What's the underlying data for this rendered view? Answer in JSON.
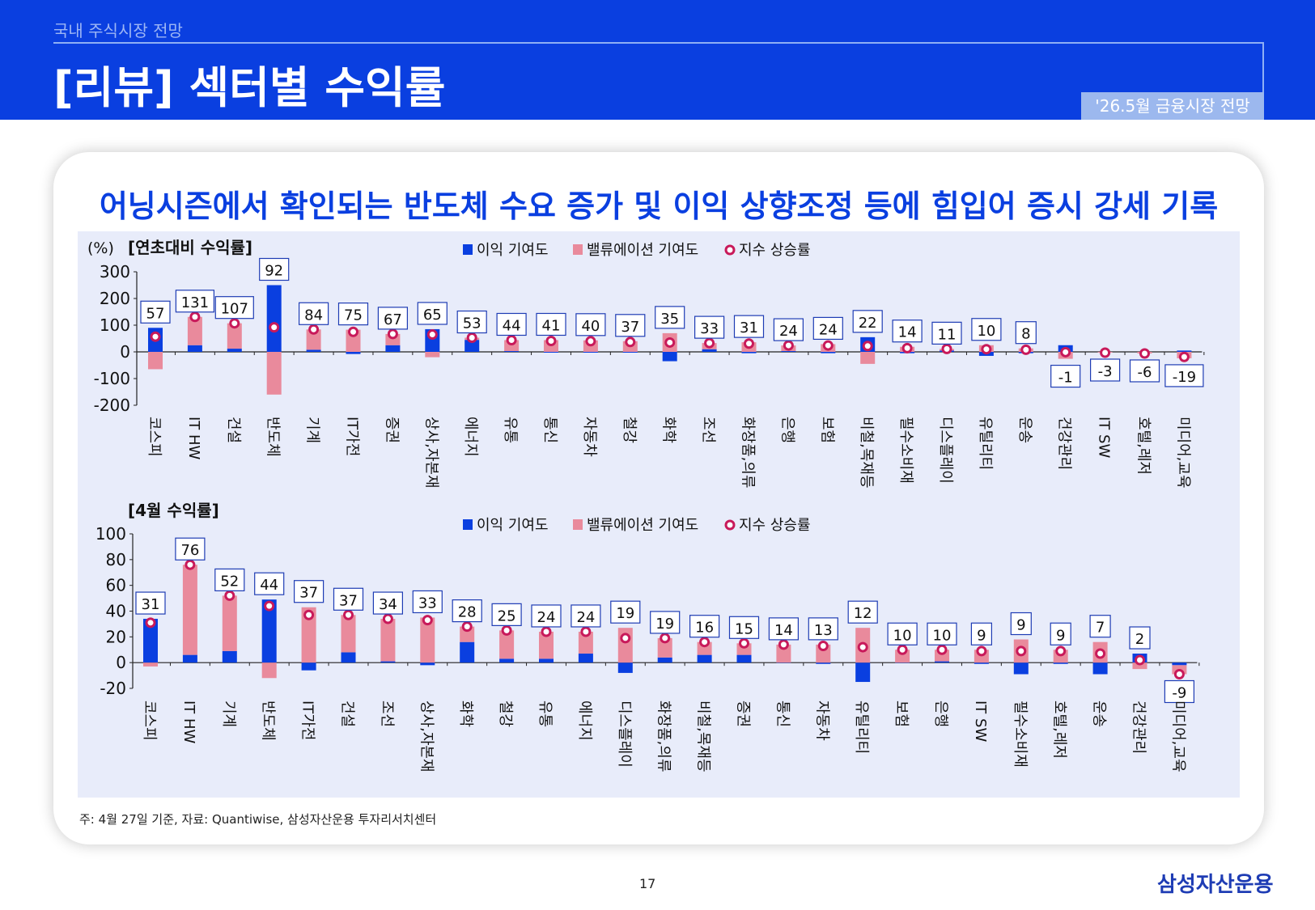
{
  "header": {
    "breadcrumb": "국내 주식시장 전망",
    "title": "[리뷰] 섹터별 수익률",
    "badge": "'26.5월 금융시장 전망"
  },
  "headline": "어닝시즌에서 확인되는 반도체 수요 증가 및 이익 상향조정 등에 힘입어 증시 강세 기록",
  "footnote": "주: 4월 27일 기준, 자료: Quantiwise, 삼성자산운용 투자리서치센터",
  "page_number": "17",
  "brand": "삼성자산운용",
  "colors": {
    "earnings": "#0a3fe0",
    "valuation": "#e98a9c",
    "index_marker": "#c8195a",
    "plot_bg": "#e8ecfa"
  },
  "chart_data": [
    {
      "type": "bar",
      "title": "[연초대비 수익률]",
      "unit": "(%)",
      "ylim": [
        -200,
        300
      ],
      "yticks": [
        300,
        200,
        100,
        0,
        -100,
        -200
      ],
      "legend": [
        "이익 기여도",
        "밸류에이션 기여도",
        "지수 상승률"
      ],
      "categories": [
        "코스피",
        "IT HW",
        "건설",
        "반도체",
        "기계",
        "IT가전",
        "증권",
        "상사,자본재",
        "에너지",
        "유통",
        "통신",
        "자동차",
        "철강",
        "화학",
        "조선",
        "화장품,의류",
        "은행",
        "보험",
        "비철,목재등",
        "필수소비재",
        "디스플레이",
        "유틸리티",
        "운송",
        "건강관리",
        "IT SW",
        "호텔,레저",
        "미디어,교육"
      ],
      "labels": [
        "57",
        "131",
        "107",
        "92",
        "84",
        "75",
        "67",
        "65",
        "53",
        "44",
        "41",
        "40",
        "37",
        "35",
        "33",
        "31",
        "24",
        "24",
        "22",
        "14",
        "11",
        "10",
        "8",
        "-1",
        "-3",
        "-6",
        "-19"
      ],
      "series": [
        {
          "name": "이익 기여도",
          "values": [
            90,
            25,
            12,
            250,
            8,
            -8,
            25,
            85,
            45,
            3,
            -3,
            -3,
            -3,
            -35,
            10,
            -5,
            3,
            -5,
            55,
            -5,
            5,
            -15,
            -5,
            25,
            0,
            0,
            5
          ]
        },
        {
          "name": "밸류에이션 기여도",
          "values": [
            -65,
            106,
            95,
            -160,
            76,
            83,
            42,
            -20,
            8,
            41,
            44,
            43,
            40,
            70,
            23,
            36,
            21,
            29,
            -45,
            19,
            6,
            25,
            13,
            -26,
            -3,
            -6,
            -24
          ]
        },
        {
          "name": "지수 상승률",
          "values": [
            57,
            131,
            107,
            92,
            84,
            75,
            67,
            65,
            53,
            44,
            41,
            40,
            37,
            35,
            33,
            31,
            24,
            24,
            22,
            14,
            11,
            10,
            8,
            -1,
            -3,
            -6,
            -19
          ]
        }
      ]
    },
    {
      "type": "bar",
      "title": "[4월 수익률]",
      "ylim": [
        -20,
        100
      ],
      "yticks": [
        100,
        80,
        60,
        40,
        20,
        0,
        -20
      ],
      "legend": [
        "이익 기여도",
        "밸류에이션 기여도",
        "지수 상승률"
      ],
      "categories": [
        "코스피",
        "IT HW",
        "기계",
        "반도체",
        "IT가전",
        "건설",
        "조선",
        "상사,자본재",
        "화학",
        "철강",
        "유통",
        "에너지",
        "디스플레이",
        "화장품,의류",
        "비철,목재등",
        "증권",
        "통신",
        "자동차",
        "유틸리티",
        "보험",
        "은행",
        "IT SW",
        "필수소비재",
        "호텔,레저",
        "운송",
        "건강관리",
        "미디어,교육"
      ],
      "labels": [
        "31",
        "76",
        "52",
        "44",
        "37",
        "37",
        "34",
        "33",
        "28",
        "25",
        "24",
        "24",
        "19",
        "19",
        "16",
        "15",
        "14",
        "13",
        "12",
        "10",
        "10",
        "9",
        "9",
        "9",
        "7",
        "2",
        "-9"
      ],
      "series": [
        {
          "name": "이익 기여도",
          "values": [
            34,
            6,
            9,
            49,
            -6,
            8,
            1,
            -2,
            16,
            3,
            3,
            7,
            -8,
            4,
            6,
            6,
            0,
            -1,
            -15,
            0,
            1,
            -1,
            -9,
            -1,
            -9,
            7,
            -2
          ]
        },
        {
          "name": "밸류에이션 기여도",
          "values": [
            -3,
            70,
            43,
            -12,
            43,
            29,
            33,
            35,
            12,
            22,
            21,
            17,
            27,
            15,
            10,
            9,
            14,
            14,
            27,
            10,
            9,
            10,
            18,
            10,
            16,
            -5,
            -7
          ]
        },
        {
          "name": "지수 상승률",
          "values": [
            31,
            76,
            52,
            44,
            37,
            37,
            34,
            33,
            28,
            25,
            24,
            24,
            19,
            19,
            16,
            15,
            14,
            13,
            12,
            10,
            10,
            9,
            9,
            9,
            7,
            2,
            -9
          ]
        }
      ]
    }
  ]
}
